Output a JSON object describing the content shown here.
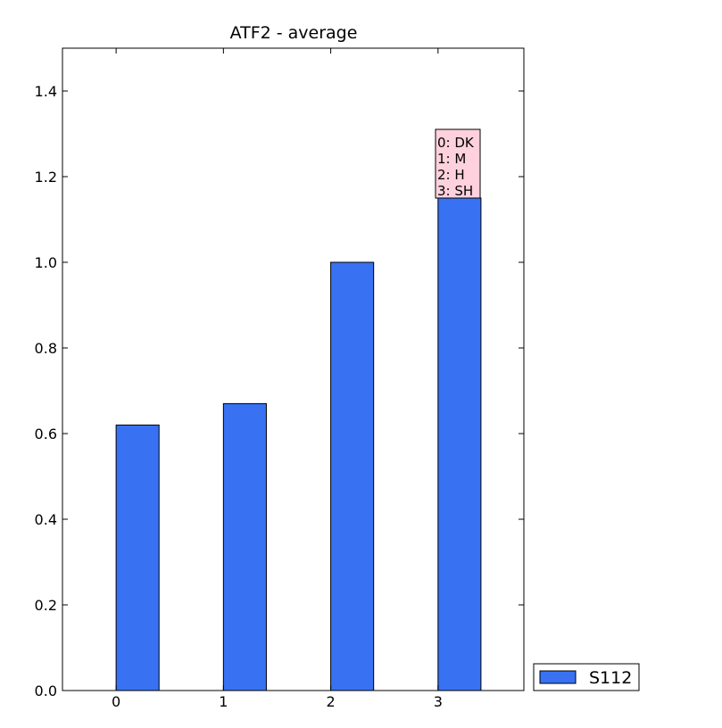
{
  "chart_data": {
    "type": "bar",
    "title": "ATF2 - average",
    "xlabel": "",
    "ylabel": "",
    "categories": [
      "0",
      "1",
      "2",
      "3"
    ],
    "x": [
      0,
      1,
      2,
      3
    ],
    "series": [
      {
        "name": "S112",
        "values": [
          0.62,
          0.67,
          1.0,
          1.15
        ],
        "color": "#3872f2"
      }
    ],
    "ylim": [
      0.0,
      1.5
    ],
    "xlim": [
      -0.5,
      3.8
    ],
    "yticks": [
      0.0,
      0.2,
      0.4,
      0.6,
      0.8,
      1.0,
      1.2,
      1.4
    ],
    "ytick_labels": [
      "0.0",
      "0.2",
      "0.4",
      "0.6",
      "0.8",
      "1.0",
      "1.2",
      "1.4"
    ],
    "xtick_labels": [
      "0",
      "1",
      "2",
      "3"
    ],
    "grid": false,
    "legend": {
      "placement": "outside-bottom-right",
      "entries": [
        "S112"
      ]
    },
    "annotation": {
      "lines": [
        "0: DK",
        "1: M",
        "2: H",
        "3: SH"
      ],
      "background": "#ffd1dc"
    }
  }
}
